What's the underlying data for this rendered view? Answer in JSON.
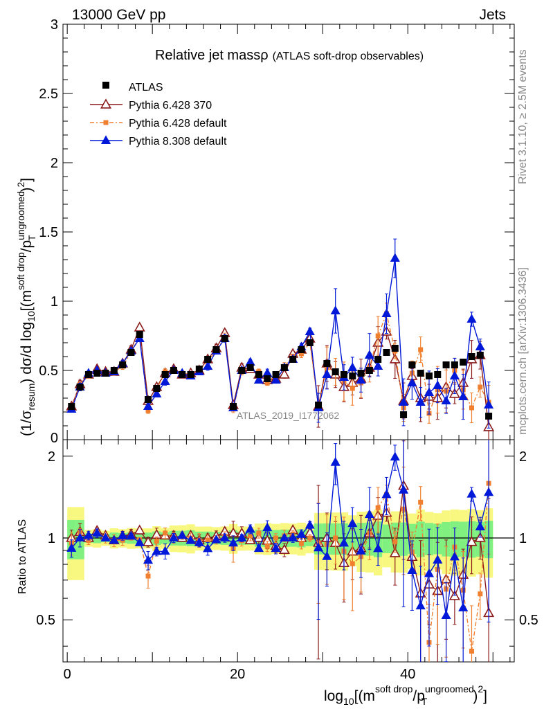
{
  "header": {
    "left": "13000 GeV pp",
    "right": "Jets",
    "side_top": "Rivet 3.1.10, ≥ 2.5M events",
    "side_bottom": "mcplots.cern.ch [arXiv:1306.3436]",
    "watermark": "ATLAS_2019_I1772062"
  },
  "colors": {
    "atlas": "#000000",
    "p6_370": "#8b1a1a",
    "p6_default": "#f08030",
    "p8_default": "#0018d8",
    "band_green": "#80f080",
    "band_yellow": "#f8f880"
  },
  "chart_data": {
    "type": "scatter",
    "title": "Relative jet massρ",
    "subtitle": "(ATLAS soft-drop observables)",
    "xlabel": "log10[(m^{soft drop}/p_T^{ungroomed})^2]",
    "ylabel": "(1/σresum) dσ/d log10[(m^{soft drop}/p_T^{ungroomed})^2]",
    "ratio_ylabel": "Ratio to ATLAS",
    "xlim": [
      -0.5,
      52.5
    ],
    "ylim": [
      0,
      3
    ],
    "ratio_ylim": [
      0.35,
      2.3
    ],
    "x_ticks": [
      "0",
      "20",
      "40"
    ],
    "y_ticks": [
      "0",
      "0.5",
      "1",
      "1.5",
      "2",
      "2.5",
      "3"
    ],
    "ratio_ticks": [
      "0.5",
      "1",
      "2"
    ],
    "legend_position": "top-left",
    "x": [
      0.5,
      1.5,
      2.5,
      3.5,
      4.5,
      5.5,
      6.5,
      7.5,
      8.5,
      9.5,
      10.5,
      11.5,
      12.5,
      13.5,
      14.5,
      15.5,
      16.5,
      17.5,
      18.5,
      19.5,
      20.5,
      21.5,
      22.5,
      23.5,
      24.5,
      25.5,
      26.5,
      27.5,
      28.5,
      29.5,
      30.5,
      31.5,
      32.5,
      33.5,
      34.5,
      35.5,
      36.5,
      37.5,
      38.5,
      39.5,
      40.5,
      41.5,
      42.5,
      43.5,
      44.5,
      45.5,
      46.5,
      47.5,
      48.5,
      49.5
    ],
    "series": [
      {
        "name": "ATLAS",
        "values": [
          0.24,
          0.38,
          0.47,
          0.48,
          0.48,
          0.5,
          0.54,
          0.63,
          0.76,
          0.29,
          0.37,
          0.47,
          0.5,
          0.47,
          0.47,
          0.51,
          0.58,
          0.65,
          0.73,
          0.24,
          0.5,
          0.52,
          0.47,
          0.44,
          0.47,
          0.52,
          0.58,
          0.65,
          0.7,
          0.25,
          0.55,
          0.49,
          0.47,
          0.46,
          0.48,
          0.5,
          0.58,
          0.63,
          0.66,
          0.18,
          0.54,
          0.48,
          0.46,
          0.47,
          0.54,
          0.54,
          0.56,
          0.6,
          0.61,
          0.17
        ]
      },
      {
        "name": "Pythia 6.428 370",
        "values": [
          0.24,
          0.4,
          0.47,
          0.51,
          0.49,
          0.49,
          0.55,
          0.65,
          0.81,
          0.28,
          0.38,
          0.48,
          0.51,
          0.47,
          0.48,
          0.5,
          0.58,
          0.66,
          0.77,
          0.25,
          0.52,
          0.51,
          0.47,
          0.43,
          0.44,
          0.47,
          0.62,
          0.65,
          0.73,
          0.24,
          0.55,
          0.47,
          0.38,
          0.41,
          0.44,
          0.52,
          0.7,
          0.78,
          0.58,
          0.28,
          0.46,
          0.3,
          0.31,
          0.3,
          0.38,
          0.33,
          0.41,
          0.58,
          0.61,
          0.09
        ]
      },
      {
        "name": "Pythia 6.428 default",
        "values": [
          0.23,
          0.4,
          0.46,
          0.5,
          0.48,
          0.49,
          0.53,
          0.63,
          0.75,
          0.21,
          0.36,
          0.49,
          0.5,
          0.48,
          0.47,
          0.5,
          0.57,
          0.64,
          0.74,
          0.22,
          0.49,
          0.53,
          0.49,
          0.41,
          0.47,
          0.53,
          0.6,
          0.62,
          0.7,
          0.24,
          0.52,
          0.49,
          0.42,
          0.37,
          0.41,
          0.52,
          0.75,
          0.91,
          0.64,
          0.23,
          0.48,
          0.65,
          0.19,
          0.36,
          0.35,
          0.5,
          0.36,
          0.23,
          0.38,
          0.27
        ]
      },
      {
        "name": "Pythia 8.308 default",
        "values": [
          0.22,
          0.38,
          0.48,
          0.5,
          0.48,
          0.49,
          0.55,
          0.64,
          0.73,
          0.24,
          0.33,
          0.42,
          0.5,
          0.48,
          0.46,
          0.49,
          0.53,
          0.64,
          0.73,
          0.23,
          0.5,
          0.56,
          0.43,
          0.48,
          0.43,
          0.52,
          0.58,
          0.67,
          0.78,
          0.23,
          0.47,
          0.93,
          0.45,
          0.52,
          0.43,
          0.61,
          0.53,
          0.91,
          1.31,
          0.27,
          0.41,
          0.27,
          0.34,
          0.39,
          0.28,
          0.46,
          0.31,
          0.87,
          0.67,
          0.25
        ]
      }
    ]
  }
}
